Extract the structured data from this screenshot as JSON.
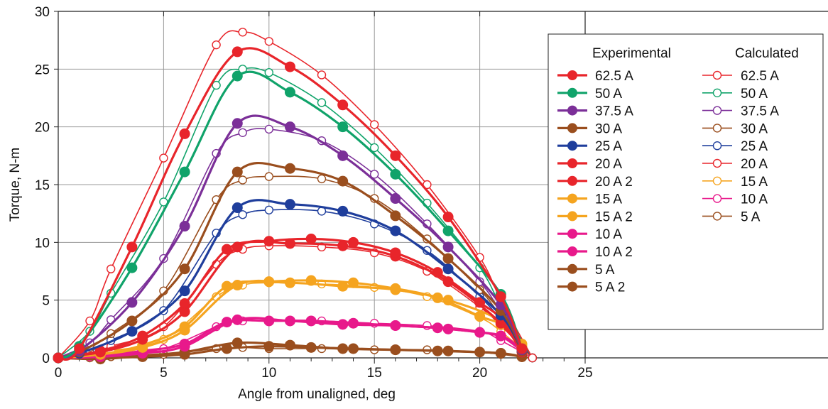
{
  "chart_data": {
    "type": "line",
    "title": "",
    "xlabel": "Angle from unaligned, deg",
    "ylabel": "Torque, N-m",
    "xlim": [
      0,
      25
    ],
    "ylim": [
      0,
      30
    ],
    "xticks": [
      0,
      5,
      10,
      15,
      20,
      25
    ],
    "yticks": [
      0,
      5,
      10,
      15,
      20,
      25,
      30
    ],
    "grid": true,
    "legend": {
      "placement": "right",
      "experimental_header": "Experimental",
      "calculated_header": "Calculated"
    },
    "experimental_series": [
      {
        "name": "62.5  A",
        "color": "#e8252b",
        "x": [
          0,
          1,
          3.5,
          6,
          8.5,
          11,
          13.5,
          16,
          18.5,
          21,
          22
        ],
        "y": [
          0,
          0.8,
          9.6,
          19.4,
          26.5,
          25.2,
          21.9,
          17.5,
          12.2,
          5.3,
          0.8
        ]
      },
      {
        "name": "50  A",
        "color": "#10a36a",
        "x": [
          0,
          1,
          3.5,
          6,
          8.5,
          11,
          13.5,
          16,
          18.5,
          21,
          22
        ],
        "y": [
          0,
          1.0,
          7.8,
          16.1,
          24.4,
          23.0,
          20.0,
          15.9,
          11.0,
          5.5,
          0.8
        ]
      },
      {
        "name": "37.5  A",
        "color": "#7b2f98",
        "x": [
          0,
          1,
          3.5,
          6,
          8.5,
          11,
          13.5,
          16,
          18.5,
          21,
          22
        ],
        "y": [
          0,
          0.6,
          4.8,
          11.4,
          20.3,
          20.0,
          17.5,
          13.8,
          9.6,
          4.6,
          0.7
        ]
      },
      {
        "name": "30  A",
        "color": "#9a4e1e",
        "x": [
          0,
          1,
          3.5,
          6,
          8.5,
          11,
          13.5,
          16,
          18.5,
          21,
          22
        ],
        "y": [
          0,
          0.5,
          3.2,
          7.7,
          16.1,
          16.4,
          15.3,
          12.3,
          8.6,
          4.1,
          0.6
        ]
      },
      {
        "name": "25  A",
        "color": "#1f3e9c",
        "x": [
          0,
          1,
          3.5,
          6,
          8.5,
          11,
          13.5,
          16,
          18.5,
          21,
          22
        ],
        "y": [
          0,
          0.4,
          2.3,
          5.8,
          13.0,
          13.3,
          12.7,
          11.0,
          7.7,
          3.7,
          0.6
        ]
      },
      {
        "name": "20  A",
        "color": "#e8252b",
        "x": [
          0,
          2,
          4,
          6,
          8,
          10,
          12,
          14,
          16,
          18,
          20,
          21,
          22
        ],
        "y": [
          0,
          0.6,
          1.9,
          4.7,
          9.4,
          10.1,
          10.3,
          10.0,
          9.1,
          7.4,
          4.8,
          3.4,
          0.6
        ]
      },
      {
        "name": "20  A  2",
        "color": "#e8252b",
        "x": [
          0,
          2,
          4,
          6,
          8.5,
          11,
          13.5,
          16,
          18.5,
          21,
          22
        ],
        "y": [
          0,
          0.5,
          1.6,
          4.0,
          9.6,
          9.9,
          9.7,
          8.8,
          6.6,
          3.0,
          0.5
        ]
      },
      {
        "name": "15  A",
        "color": "#f5a41f",
        "x": [
          0,
          2,
          4,
          6,
          8,
          10,
          12,
          14,
          16,
          18,
          20,
          21,
          22
        ],
        "y": [
          0,
          0.3,
          1.1,
          2.7,
          6.2,
          6.6,
          6.7,
          6.5,
          6.0,
          5.2,
          3.6,
          2.9,
          1.2
        ]
      },
      {
        "name": "15  A  2",
        "color": "#f5a41f",
        "x": [
          0,
          2,
          4,
          6,
          8.5,
          11,
          13.5,
          16,
          18.5,
          21,
          22
        ],
        "y": [
          0,
          0.3,
          0.9,
          2.4,
          6.3,
          6.5,
          6.2,
          5.9,
          5.0,
          3.2,
          1.0
        ]
      },
      {
        "name": "10  A",
        "color": "#e8198b",
        "x": [
          0,
          2,
          4,
          6,
          8,
          10,
          12,
          14,
          16,
          18,
          20,
          21,
          22
        ],
        "y": [
          0,
          0.2,
          0.6,
          1.2,
          3.1,
          3.2,
          3.2,
          3.0,
          2.8,
          2.6,
          2.2,
          1.9,
          0.6
        ]
      },
      {
        "name": "10  A  2",
        "color": "#e8198b",
        "x": [
          0,
          2,
          4,
          6,
          8.5,
          11,
          13.5,
          16,
          18.5,
          21,
          22
        ],
        "y": [
          0,
          0.1,
          0.4,
          1.0,
          3.3,
          3.2,
          2.9,
          2.8,
          2.5,
          1.9,
          0.6
        ]
      },
      {
        "name": "5  A",
        "color": "#9a4e1e",
        "x": [
          0,
          2,
          4,
          6,
          8,
          10,
          12,
          14,
          16,
          18,
          20,
          21,
          22
        ],
        "y": [
          0,
          0.0,
          0.1,
          0.3,
          0.8,
          1.0,
          0.9,
          0.8,
          0.7,
          0.6,
          0.5,
          0.4,
          0.1
        ]
      },
      {
        "name": "5  A  2",
        "color": "#9a4e1e",
        "x": [
          0,
          2,
          4,
          6,
          8.5,
          11,
          13.5,
          16,
          18.5,
          21,
          22
        ],
        "y": [
          0,
          -0.1,
          0.2,
          0.5,
          1.3,
          1.1,
          0.8,
          0.7,
          0.6,
          0.4,
          0.1
        ]
      }
    ],
    "calculated_series": [
      {
        "name": "62.5  A",
        "color": "#e8252b",
        "x": [
          0,
          1.5,
          2.5,
          5,
          7.5,
          8.75,
          10,
          12.5,
          15,
          17.5,
          20,
          21,
          22.5
        ],
        "y": [
          0,
          3.2,
          7.7,
          17.3,
          27.1,
          28.2,
          27.4,
          24.5,
          20.2,
          15.0,
          8.7,
          5.0,
          0
        ]
      },
      {
        "name": "50  A",
        "color": "#10a36a",
        "x": [
          0,
          1.5,
          2.5,
          5,
          7.5,
          8.75,
          10,
          12.5,
          15,
          17.5,
          20,
          21,
          22.5
        ],
        "y": [
          0,
          2.3,
          5.6,
          13.5,
          23.6,
          25.0,
          24.7,
          22.1,
          18.2,
          13.4,
          7.8,
          4.5,
          0
        ]
      },
      {
        "name": "37.5  A",
        "color": "#7b2f98",
        "x": [
          0,
          1.5,
          2.5,
          5,
          7.5,
          8.75,
          10,
          12.5,
          15,
          17.5,
          20,
          21,
          22.5
        ],
        "y": [
          0,
          1.3,
          3.3,
          8.6,
          17.7,
          19.5,
          19.8,
          18.8,
          15.9,
          11.6,
          6.6,
          4.0,
          0
        ]
      },
      {
        "name": "30  A",
        "color": "#9a4e1e",
        "x": [
          0,
          1.5,
          2.5,
          5,
          7.5,
          8.75,
          10,
          12.5,
          15,
          17.5,
          20,
          21,
          22.5
        ],
        "y": [
          0,
          0.9,
          2.1,
          5.8,
          13.7,
          15.4,
          15.7,
          15.5,
          13.8,
          10.3,
          5.9,
          3.6,
          0
        ]
      },
      {
        "name": "25  A",
        "color": "#1f3e9c",
        "x": [
          0,
          1.5,
          2.5,
          5,
          7.5,
          8.75,
          10,
          12.5,
          15,
          17.5,
          20,
          21,
          22.5
        ],
        "y": [
          0,
          0.6,
          1.5,
          4.1,
          10.8,
          12.4,
          12.8,
          12.7,
          11.6,
          9.3,
          5.3,
          3.3,
          0
        ]
      },
      {
        "name": "20  A",
        "color": "#e8252b",
        "x": [
          0,
          1.5,
          2.5,
          5,
          7.5,
          8.75,
          10,
          12.5,
          15,
          17.5,
          20,
          21,
          22.5
        ],
        "y": [
          0,
          0.4,
          1.0,
          2.7,
          8.1,
          9.4,
          9.7,
          9.6,
          9.1,
          7.5,
          4.4,
          2.8,
          0
        ]
      },
      {
        "name": "15  A",
        "color": "#f5a41f",
        "x": [
          0,
          1.5,
          2.5,
          5,
          7.5,
          8.75,
          10,
          12.5,
          15,
          17.5,
          20,
          21,
          22.5
        ],
        "y": [
          0,
          0.2,
          0.6,
          1.6,
          5.3,
          6.3,
          6.5,
          6.4,
          6.1,
          5.3,
          3.5,
          2.3,
          0
        ]
      },
      {
        "name": "10  A",
        "color": "#e8198b",
        "x": [
          0,
          1.5,
          2.5,
          5,
          7.5,
          8.75,
          10,
          12.5,
          15,
          17.5,
          20,
          21,
          22.5
        ],
        "y": [
          0,
          0.1,
          0.3,
          0.8,
          2.7,
          3.2,
          3.2,
          3.2,
          3.0,
          2.8,
          2.3,
          1.5,
          0
        ]
      },
      {
        "name": "5  A",
        "color": "#9a4e1e",
        "x": [
          0,
          1.5,
          2.5,
          5,
          7.5,
          8.75,
          10,
          12.5,
          15,
          17.5,
          20,
          21,
          22.5
        ],
        "y": [
          0,
          0.0,
          0.1,
          0.3,
          0.8,
          0.9,
          0.8,
          0.8,
          0.7,
          0.7,
          0.5,
          0.3,
          0
        ]
      }
    ]
  }
}
